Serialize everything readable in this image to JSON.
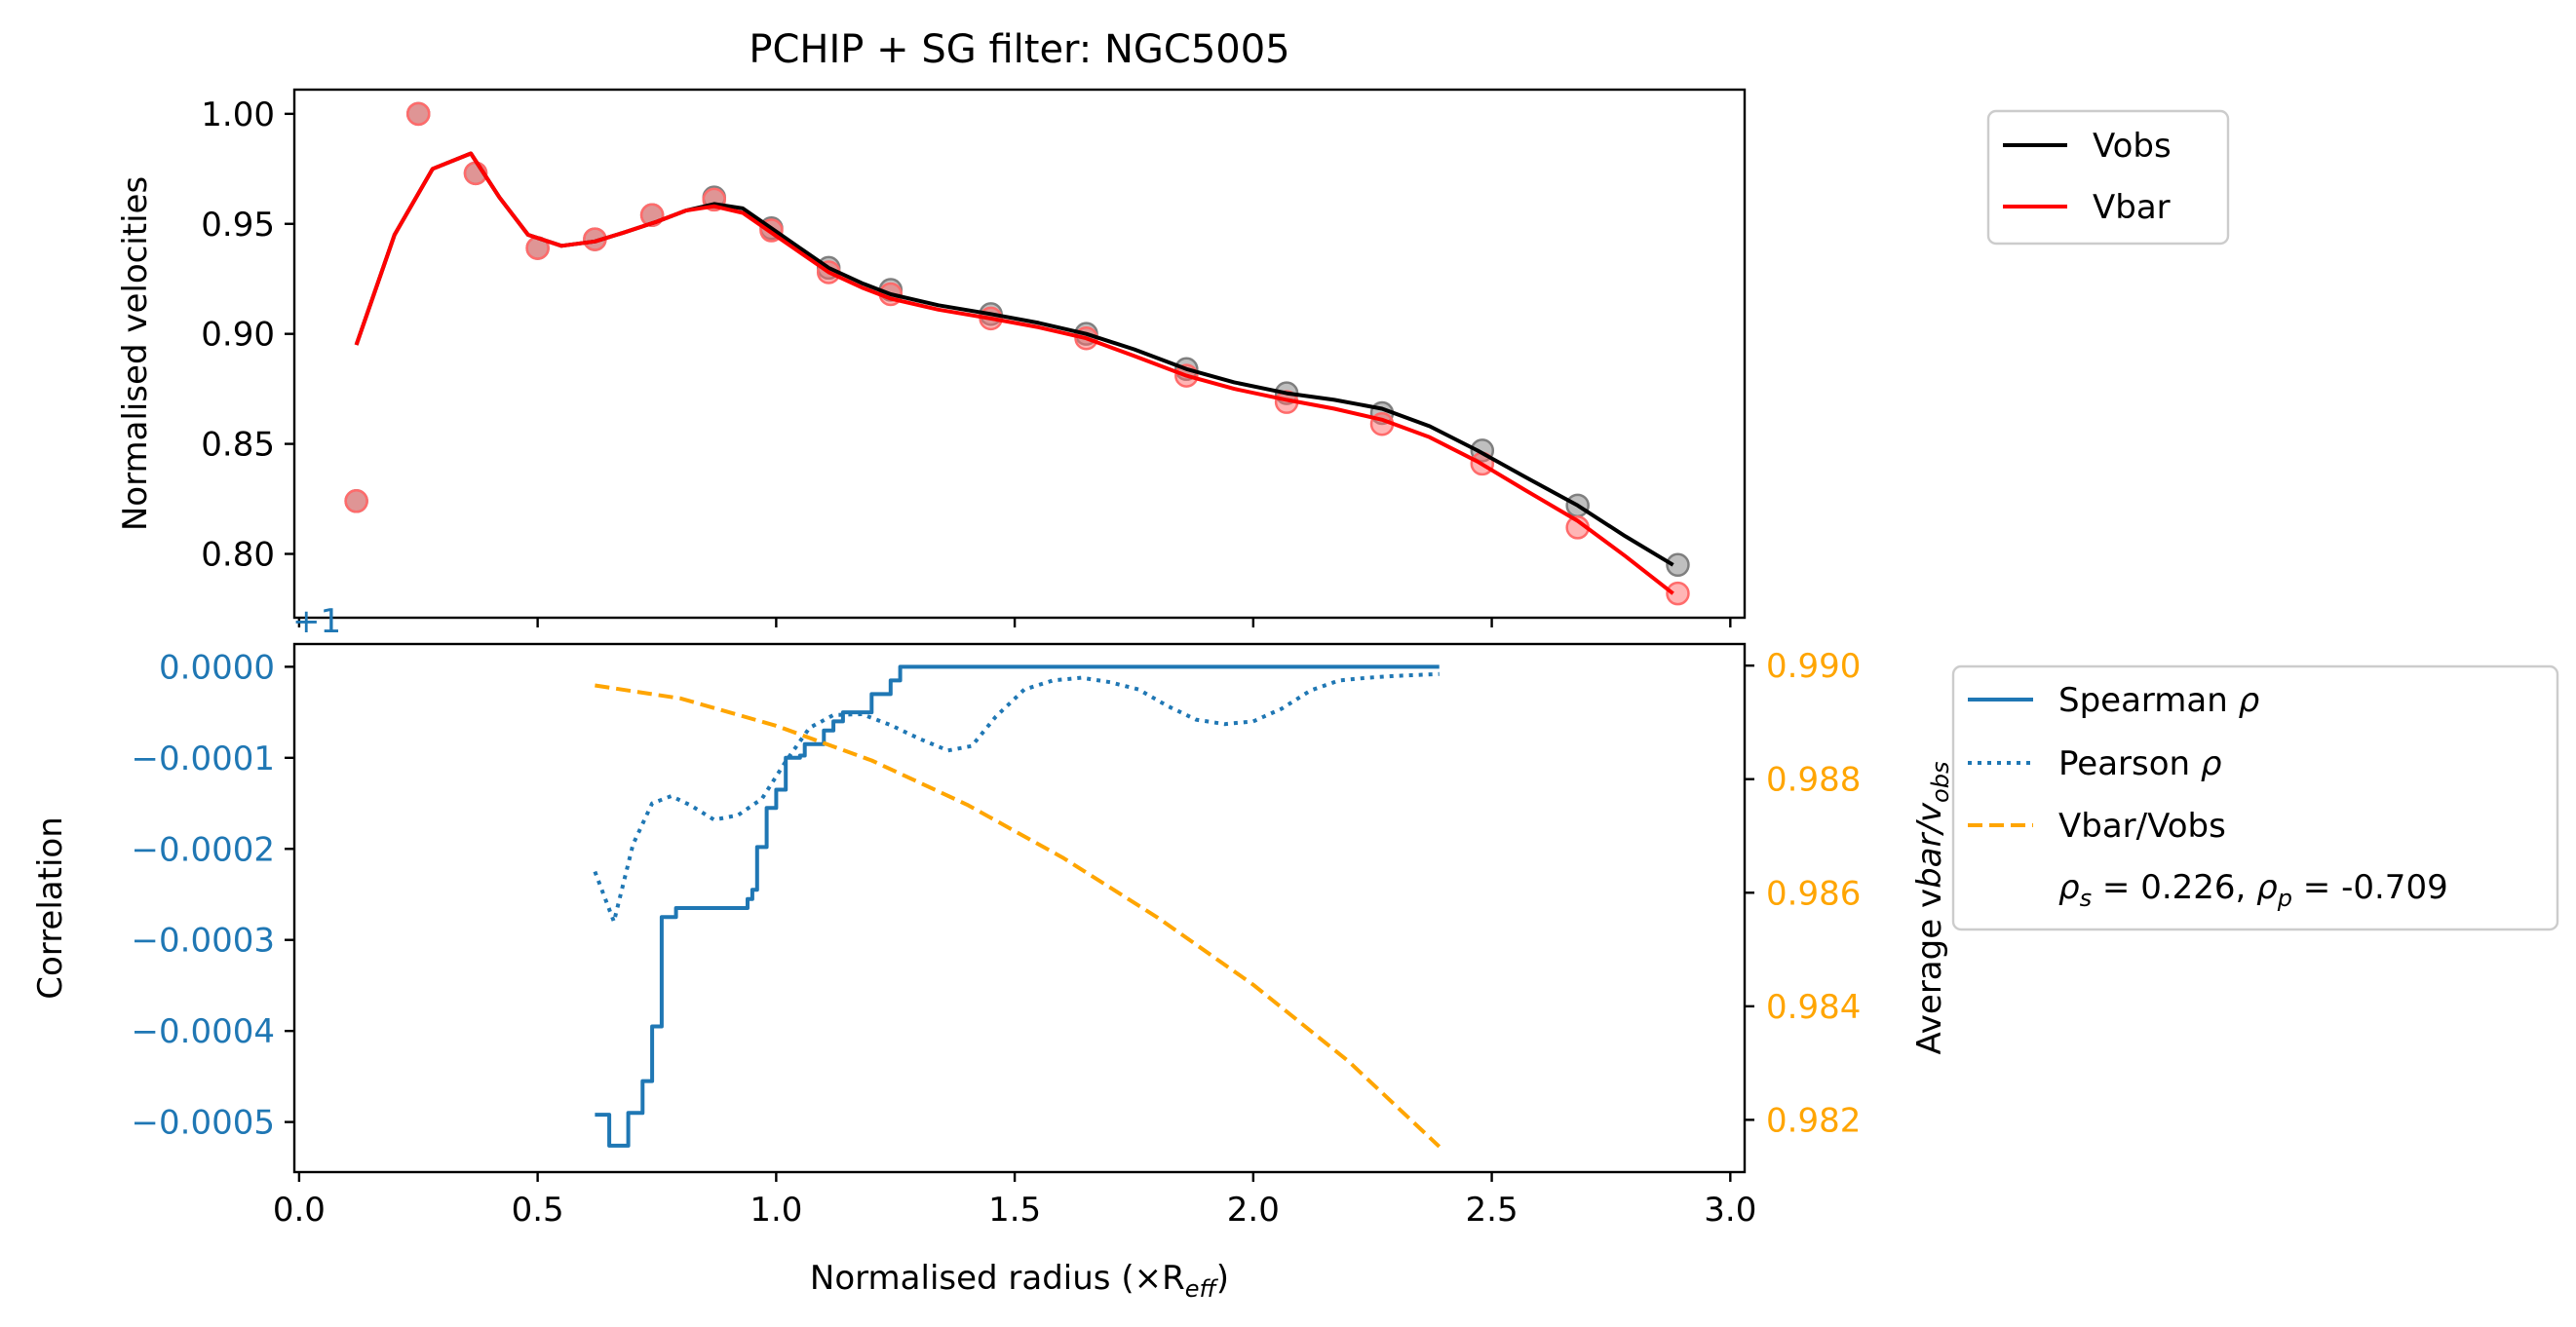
{
  "chart_data": [
    {
      "type": "line",
      "title": "PCHIP + SG filter: NGC5005",
      "xlabel": "",
      "ylabel": "Normalised velocities",
      "xlim": [
        -0.01,
        3.03
      ],
      "ylim": [
        0.771,
        1.011
      ],
      "x_ticks": [
        0.0,
        0.5,
        1.0,
        1.5,
        2.0,
        2.5,
        3.0
      ],
      "y_ticks": [
        0.8,
        0.85,
        0.9,
        0.95,
        1.0
      ],
      "y_tick_labels": [
        "0.80",
        "0.85",
        "0.90",
        "0.95",
        "1.00"
      ],
      "x_tick_labels_visible": false,
      "legend_position": "outside-right-top",
      "series": [
        {
          "name": "Vobs",
          "color": "#000000",
          "style": "solid",
          "x": [
            0.12,
            0.2,
            0.28,
            0.36,
            0.42,
            0.48,
            0.55,
            0.62,
            0.68,
            0.75,
            0.81,
            0.87,
            0.93,
            0.99,
            1.05,
            1.11,
            1.18,
            1.24,
            1.34,
            1.45,
            1.55,
            1.65,
            1.75,
            1.86,
            1.96,
            2.07,
            2.17,
            2.27,
            2.37,
            2.47,
            2.57,
            2.68,
            2.78,
            2.88
          ],
          "values": [
            0.895,
            0.945,
            0.975,
            0.982,
            0.962,
            0.945,
            0.94,
            0.942,
            0.946,
            0.951,
            0.956,
            0.959,
            0.957,
            0.948,
            0.939,
            0.93,
            0.923,
            0.918,
            0.913,
            0.909,
            0.905,
            0.9,
            0.893,
            0.884,
            0.878,
            0.873,
            0.87,
            0.866,
            0.858,
            0.847,
            0.835,
            0.822,
            0.808,
            0.795
          ]
        },
        {
          "name": "Vbar",
          "color": "#ff0000",
          "style": "solid",
          "x": [
            0.12,
            0.2,
            0.28,
            0.36,
            0.42,
            0.48,
            0.55,
            0.62,
            0.68,
            0.75,
            0.81,
            0.87,
            0.93,
            0.99,
            1.05,
            1.11,
            1.18,
            1.24,
            1.34,
            1.45,
            1.55,
            1.65,
            1.75,
            1.86,
            1.96,
            2.07,
            2.17,
            2.27,
            2.37,
            2.47,
            2.57,
            2.68,
            2.78,
            2.88
          ],
          "values": [
            0.895,
            0.945,
            0.975,
            0.982,
            0.962,
            0.945,
            0.94,
            0.942,
            0.946,
            0.951,
            0.956,
            0.958,
            0.955,
            0.946,
            0.937,
            0.928,
            0.921,
            0.916,
            0.911,
            0.907,
            0.903,
            0.898,
            0.89,
            0.881,
            0.875,
            0.87,
            0.866,
            0.861,
            0.853,
            0.842,
            0.829,
            0.815,
            0.799,
            0.782
          ]
        },
        {
          "name": "Vobs points",
          "color": "#7f7f7f",
          "style": "markers",
          "x": [
            0.12,
            0.25,
            0.37,
            0.5,
            0.62,
            0.74,
            0.87,
            0.99,
            1.11,
            1.24,
            1.45,
            1.65,
            1.86,
            2.07,
            2.27,
            2.48,
            2.68,
            2.89
          ],
          "values": [
            0.824,
            1.0,
            0.973,
            0.939,
            0.943,
            0.954,
            0.962,
            0.948,
            0.93,
            0.92,
            0.909,
            0.9,
            0.884,
            0.873,
            0.864,
            0.847,
            0.822,
            0.795
          ]
        },
        {
          "name": "Vbar points",
          "color": "#ff6b6b",
          "style": "markers",
          "x": [
            0.12,
            0.25,
            0.37,
            0.5,
            0.62,
            0.74,
            0.87,
            0.99,
            1.11,
            1.24,
            1.45,
            1.65,
            1.86,
            2.07,
            2.27,
            2.48,
            2.68,
            2.89
          ],
          "values": [
            0.824,
            1.0,
            0.973,
            0.939,
            0.943,
            0.954,
            0.961,
            0.947,
            0.928,
            0.918,
            0.907,
            0.898,
            0.881,
            0.869,
            0.859,
            0.841,
            0.812,
            0.782
          ]
        }
      ]
    },
    {
      "type": "line",
      "title": "",
      "xlabel": "Normalised radius (×R",
      "xlabel_sub": "eff",
      "xlabel_end": ")",
      "ylabel": "Correlation",
      "offset_text": "+1",
      "xlim": [
        -0.01,
        3.03
      ],
      "ylim": [
        -0.000555,
        2.5e-05
      ],
      "x_ticks": [
        0.0,
        0.5,
        1.0,
        1.5,
        2.0,
        2.5,
        3.0
      ],
      "x_tick_labels": [
        "0.0",
        "0.5",
        "1.0",
        "1.5",
        "2.0",
        "2.5",
        "3.0"
      ],
      "y_ticks": [
        0.0,
        -0.0001,
        -0.0002,
        -0.0003,
        -0.0004,
        -0.0005
      ],
      "y_tick_labels": [
        "0.0000",
        "−0.0001",
        "−0.0002",
        "−0.0003",
        "−0.0004",
        "−0.0005"
      ],
      "right_axis": {
        "ylabel": "Average v",
        "ylabel_sub1": "bar",
        "ylabel_mid": "/v",
        "ylabel_sub2": "obs",
        "ylim": [
          0.98108,
          0.99038
        ],
        "y_ticks": [
          0.982,
          0.984,
          0.986,
          0.988,
          0.99
        ],
        "y_tick_labels": [
          "0.982",
          "0.984",
          "0.986",
          "0.988",
          "0.990"
        ],
        "color": "#ffa500"
      },
      "left_axis_color": "#1f77b4",
      "legend_position": "outside-right",
      "legend": {
        "spearman": "Spearman ",
        "spearman_sym": "ρ",
        "pearson": "Pearson ",
        "pearson_sym": "ρ",
        "ratio": "Vbar/Vobs",
        "stats_rho": "ρ",
        "stats_s": "s",
        "stats_mid": " = 0.226, ",
        "stats_p": "p",
        "stats_end": " = -0.709"
      },
      "series": [
        {
          "name": "Spearman ρ",
          "axis": "left",
          "color": "#1f77b4",
          "style": "solid",
          "x": [
            0.62,
            0.64,
            0.65,
            0.66,
            0.67,
            0.69,
            0.72,
            0.74,
            0.75,
            0.76,
            0.77,
            0.79,
            0.81,
            0.93,
            0.94,
            0.95,
            0.96,
            0.98,
            1.0,
            1.02,
            1.03,
            1.05,
            1.06,
            1.08,
            1.1,
            1.12,
            1.14,
            1.16,
            1.2,
            1.22,
            1.24,
            1.26,
            1.3,
            1.32,
            1.4,
            1.8,
            2.0,
            2.39
          ],
          "values": [
            -0.000492,
            -0.000492,
            -0.000526,
            -0.000526,
            -0.000526,
            -0.00049,
            -0.000455,
            -0.000395,
            -0.000395,
            -0.000275,
            -0.000275,
            -0.000265,
            -0.000265,
            -0.000265,
            -0.000255,
            -0.000245,
            -0.000198,
            -0.000155,
            -0.000135,
            -0.0001,
            -0.0001,
            -9.75e-05,
            -8.5e-05,
            -8.5e-05,
            -7e-05,
            -6e-05,
            -5e-05,
            -5e-05,
            -3e-05,
            -3e-05,
            -1.5e-05,
            0.0,
            0.0,
            0.0,
            0.0,
            0.0,
            0.0,
            0.0
          ]
        },
        {
          "name": "Pearson ρ",
          "axis": "left",
          "color": "#1f77b4",
          "style": "dotted",
          "x": [
            0.62,
            0.66,
            0.7,
            0.74,
            0.78,
            0.82,
            0.87,
            0.92,
            0.97,
            1.02,
            1.07,
            1.12,
            1.18,
            1.24,
            1.3,
            1.36,
            1.41,
            1.46,
            1.52,
            1.58,
            1.64,
            1.7,
            1.76,
            1.82,
            1.88,
            1.94,
            2.0,
            2.06,
            2.12,
            2.18,
            2.24,
            2.3,
            2.39
          ],
          "values": [
            -0.000225,
            -0.00028,
            -0.000195,
            -0.00015,
            -0.000142,
            -0.000152,
            -0.000168,
            -0.000163,
            -0.000145,
            -0.000104,
            -6.7e-05,
            -5.3e-05,
            -5.2e-05,
            -6.4e-05,
            -7.9e-05,
            -9.2e-05,
            -8.7e-05,
            -5.5e-05,
            -2.5e-05,
            -1.5e-05,
            -1.2e-05,
            -1.7e-05,
            -2.5e-05,
            -4.3e-05,
            -5.8e-05,
            -6.3e-05,
            -6e-05,
            -4.6e-05,
            -2.6e-05,
            -1.5e-05,
            -1.2e-05,
            -1e-05,
            -8e-06
          ]
        },
        {
          "name": "Vbar/Vobs",
          "axis": "right",
          "color": "#ffa500",
          "style": "dashed",
          "x": [
            0.62,
            0.8,
            1.0,
            1.2,
            1.4,
            1.6,
            1.8,
            2.0,
            2.2,
            2.39
          ],
          "values": [
            0.98965,
            0.98942,
            0.98894,
            0.98833,
            0.98755,
            0.98662,
            0.98556,
            0.98438,
            0.98303,
            0.98153
          ]
        }
      ]
    }
  ]
}
